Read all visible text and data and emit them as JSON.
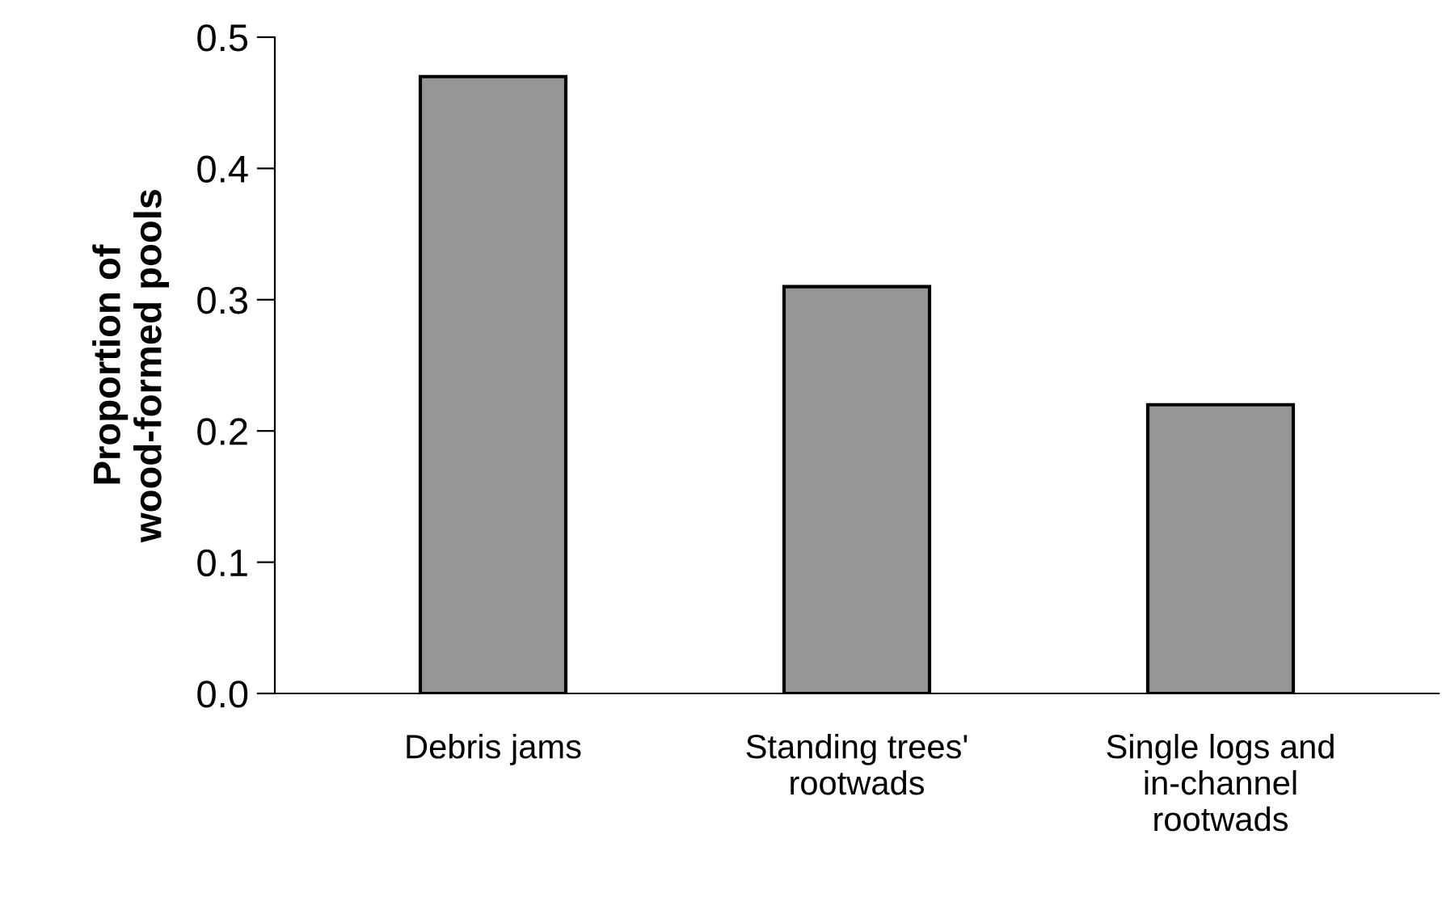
{
  "chart_data": {
    "type": "bar",
    "ylabel": "Proportion of\nwood-formed pools",
    "categories": [
      "Debris jams",
      "Standing trees'\nrootwads",
      "Single logs and\nin-channel\nrootwads"
    ],
    "values": [
      0.47,
      0.31,
      0.22
    ],
    "color": "#969696",
    "ylim": [
      0,
      0.5
    ],
    "yticks": [
      {
        "value": 0,
        "label": "0.0"
      },
      0.1,
      0.2,
      0.3,
      0.4,
      0.5
    ],
    "grid": false
  }
}
